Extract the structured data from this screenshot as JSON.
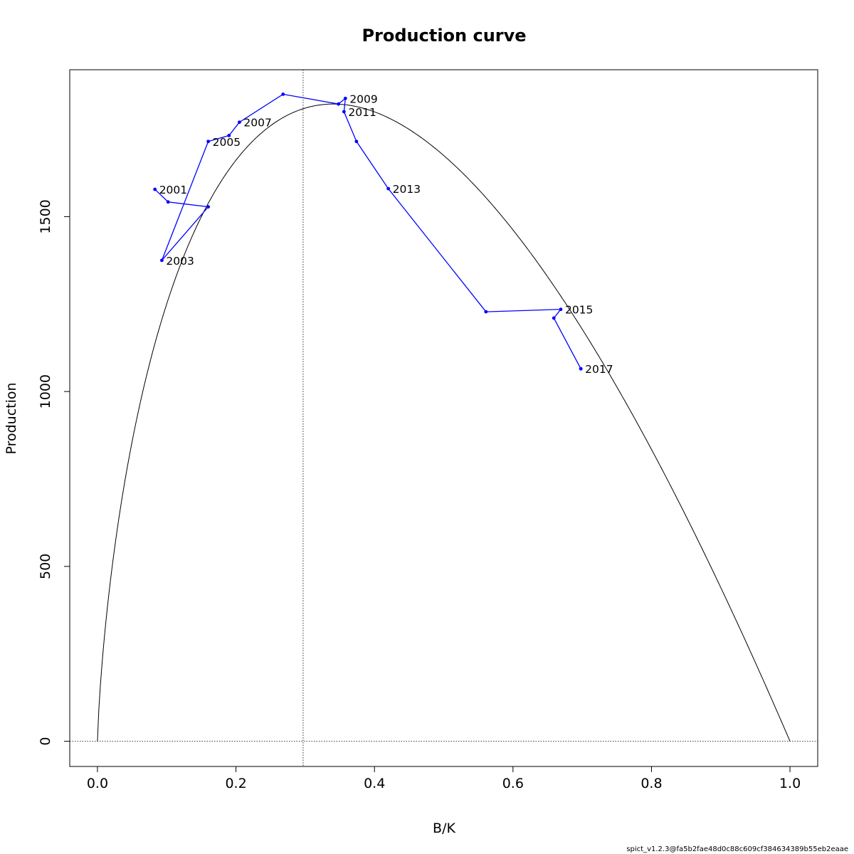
{
  "chart_data": {
    "type": "line",
    "title": "Production curve",
    "xlabel": "B/K",
    "ylabel": "Production",
    "xlim": [
      -0.04,
      1.04
    ],
    "ylim": [
      -72,
      1920
    ],
    "xticks": [
      0.0,
      0.2,
      0.4,
      0.6,
      0.8,
      1.0
    ],
    "xtick_labels": [
      "0.0",
      "0.2",
      "0.4",
      "0.6",
      "0.8",
      "1.0"
    ],
    "yticks": [
      0,
      500,
      1000,
      1500
    ],
    "ytick_labels": [
      "0",
      "500",
      "1000",
      "1500"
    ],
    "grid": false,
    "reference_lines": {
      "bmsy_k": 0.297,
      "production_zero": 0
    },
    "theoretical_curve": {
      "n": 0.86,
      "k": 1.0,
      "peak_x": 0.297,
      "peak_y": 1822,
      "color": "#000000"
    },
    "series": [
      {
        "color": "#0000ff",
        "x": [
          0.083,
          0.102,
          0.16,
          0.093,
          0.16,
          0.19,
          0.205,
          0.268,
          0.348,
          0.358,
          0.356,
          0.374,
          0.42,
          0.561,
          0.669,
          0.659,
          0.698,
          0.698
        ],
        "y": [
          1578,
          1542,
          1528,
          1375,
          1715,
          1732,
          1770,
          1850,
          1822,
          1838,
          1800,
          1715,
          1580,
          1228,
          1235,
          1210,
          1065,
          1065
        ]
      }
    ],
    "point_labels": [
      {
        "text": "2001",
        "x": 0.083,
        "y": 1578
      },
      {
        "text": "2003",
        "x": 0.093,
        "y": 1375
      },
      {
        "text": "2005",
        "x": 0.16,
        "y": 1715
      },
      {
        "text": "2007",
        "x": 0.205,
        "y": 1770
      },
      {
        "text": "2009",
        "x": 0.358,
        "y": 1838
      },
      {
        "text": "2011",
        "x": 0.356,
        "y": 1800
      },
      {
        "text": "2013",
        "x": 0.42,
        "y": 1580
      },
      {
        "text": "2015",
        "x": 0.669,
        "y": 1235
      },
      {
        "text": "2017",
        "x": 0.698,
        "y": 1065
      }
    ]
  },
  "footer": "spict_v1.2.3@fa5b2fae48d0c88c609cf384634389b55eb2eaae"
}
